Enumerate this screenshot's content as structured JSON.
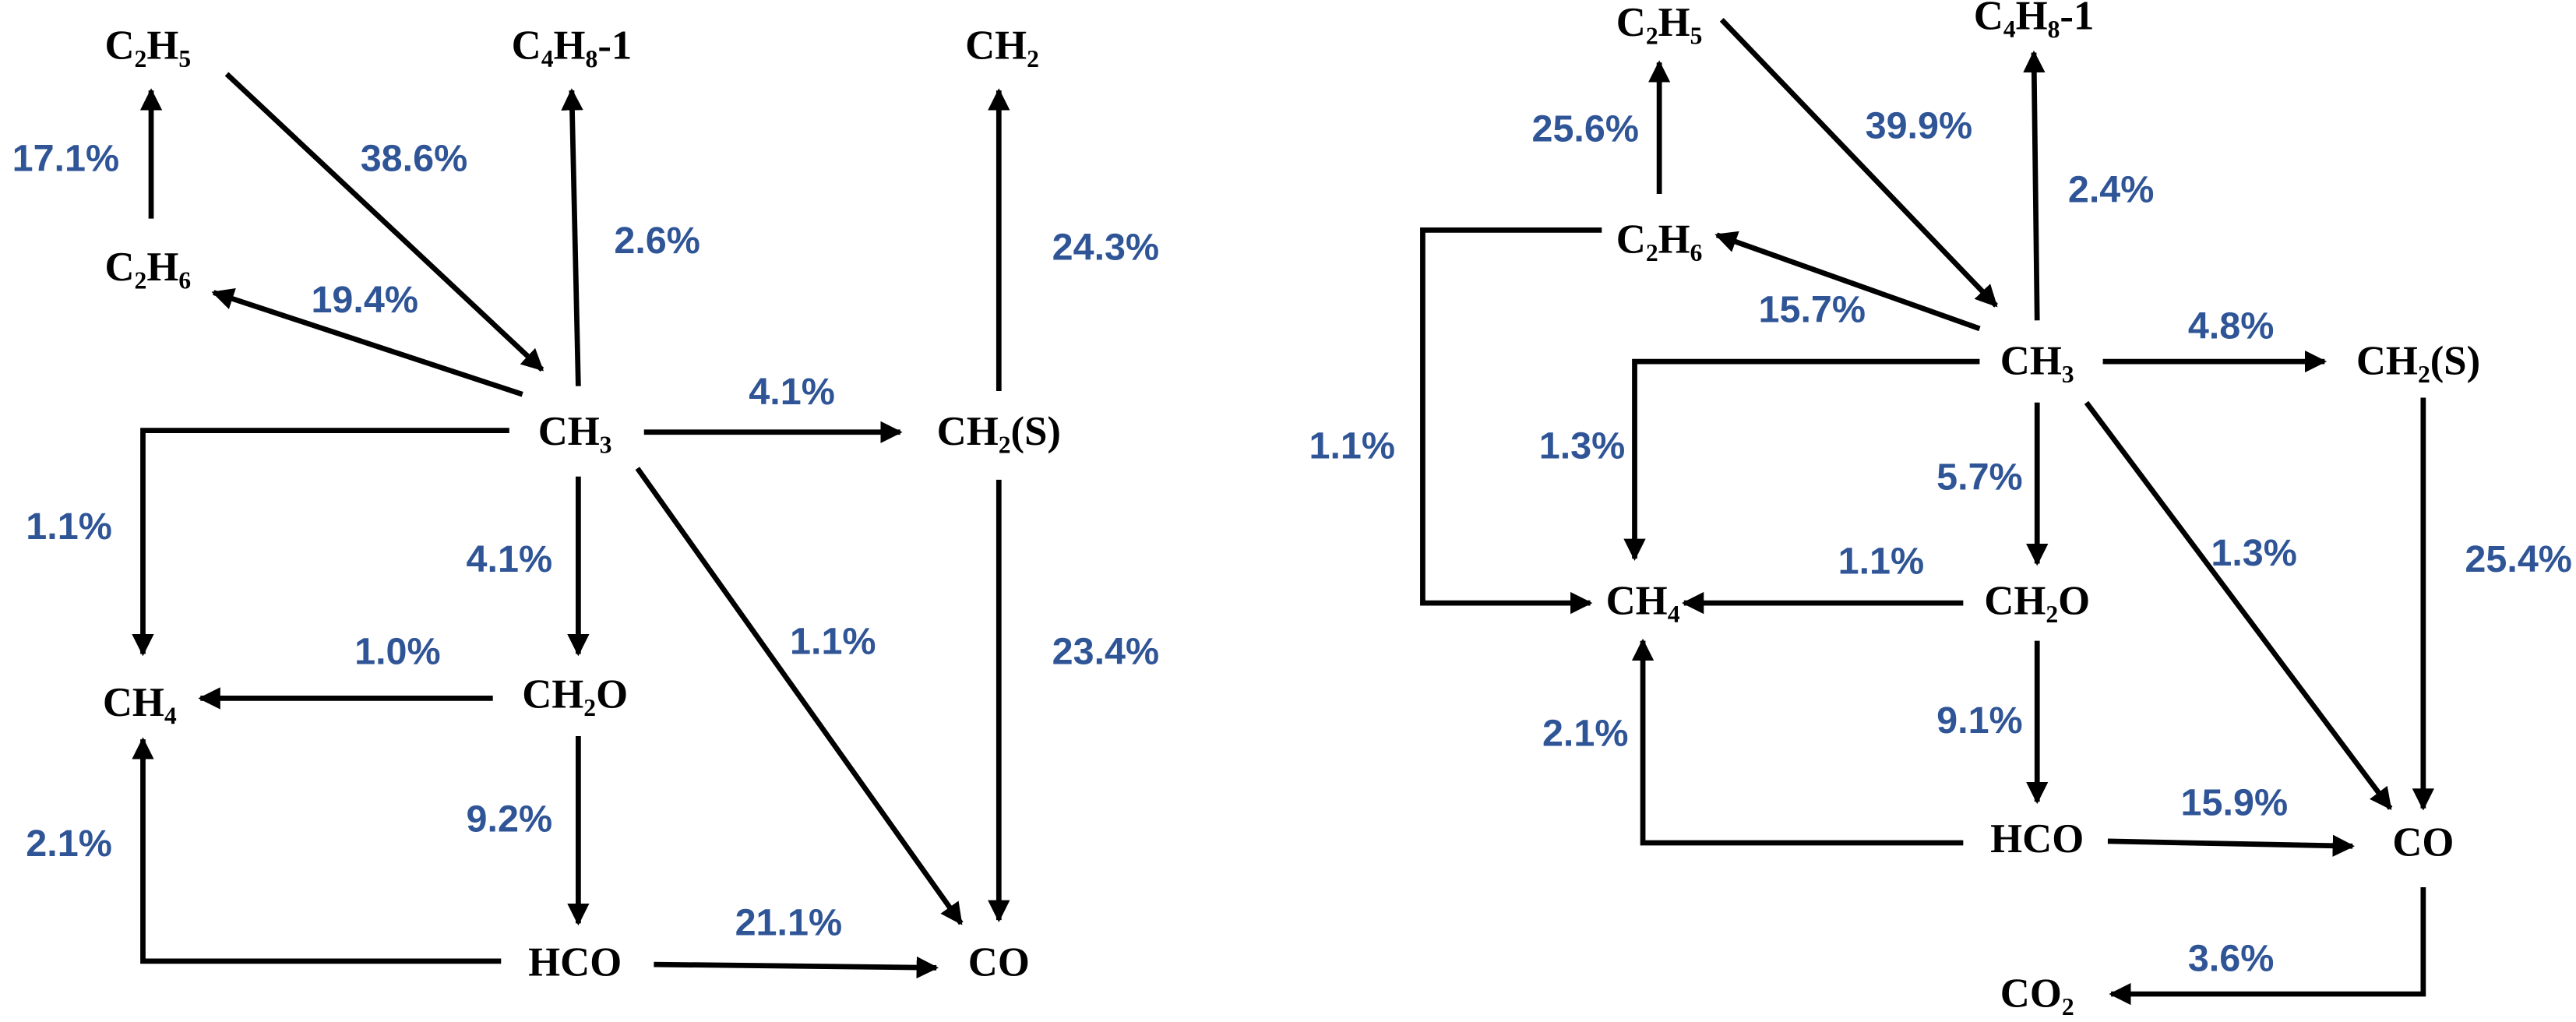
{
  "diagrams": [
    {
      "nodes": [
        {
          "label": "C₂H₅"
        },
        {
          "label": "C₄H₈-1"
        },
        {
          "label": "CH₂"
        },
        {
          "label": "C₂H₆"
        },
        {
          "label": "CH₃"
        },
        {
          "label": "CH₂(S)"
        },
        {
          "label": "CH₄"
        },
        {
          "label": "CH₂O"
        },
        {
          "label": "HCO"
        },
        {
          "label": "CO"
        }
      ],
      "edges": [
        {
          "label": "17.1%"
        },
        {
          "label": "38.6%"
        },
        {
          "label": "2.6%"
        },
        {
          "label": "19.4%"
        },
        {
          "label": "4.1%"
        },
        {
          "label": "24.3%"
        },
        {
          "label": "23.4%"
        },
        {
          "label": "1.1%"
        },
        {
          "label": "4.1%"
        },
        {
          "label": "1.1%"
        },
        {
          "label": "1.0%"
        },
        {
          "label": "9.2%"
        },
        {
          "label": "2.1%"
        },
        {
          "label": "21.1%"
        }
      ]
    },
    {
      "nodes": [
        {
          "label": "C₂H₅"
        },
        {
          "label": "C₄H₈-1"
        },
        {
          "label": "C₂H₆"
        },
        {
          "label": "CH₃"
        },
        {
          "label": "CH₂(S)"
        },
        {
          "label": "CH₄"
        },
        {
          "label": "CH₂O"
        },
        {
          "label": "HCO"
        },
        {
          "label": "CO"
        },
        {
          "label": "CO₂"
        }
      ],
      "edges": [
        {
          "label": "25.6%"
        },
        {
          "label": "39.9%"
        },
        {
          "label": "2.4%"
        },
        {
          "label": "15.7%"
        },
        {
          "label": "4.8%"
        },
        {
          "label": "25.4%"
        },
        {
          "label": "1.1%"
        },
        {
          "label": "1.3%"
        },
        {
          "label": "5.7%"
        },
        {
          "label": "1.3%"
        },
        {
          "label": "1.1%"
        },
        {
          "label": "9.1%"
        },
        {
          "label": "2.1%"
        },
        {
          "label": "15.9%"
        },
        {
          "label": "3.6%"
        }
      ]
    }
  ]
}
